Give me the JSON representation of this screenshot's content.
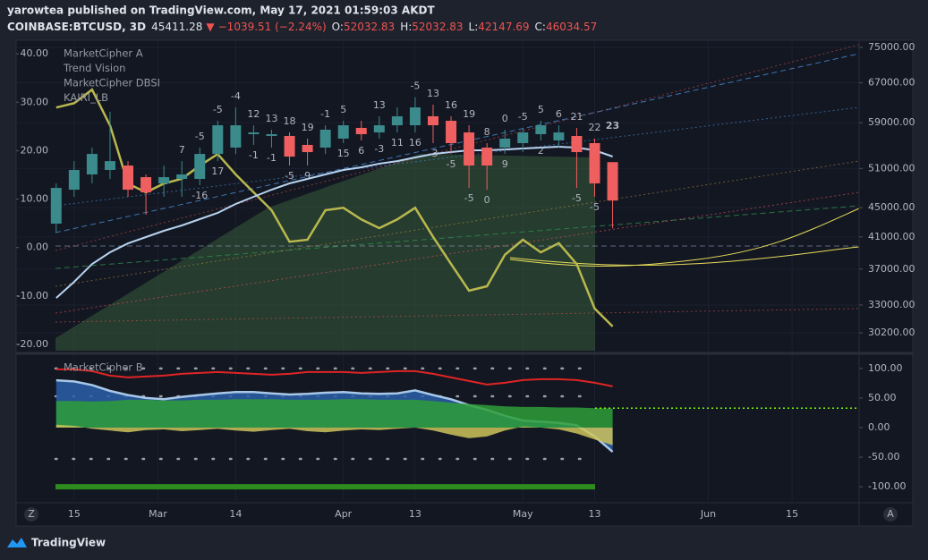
{
  "header": {
    "byline": "yarowtea published on TradingView.com, May 17, 2021 01:59:03 AKDT",
    "symbol": "COINBASE:BTCUSD, 3D",
    "price": "45411.28",
    "arrow": "▼",
    "change": "−1039.51 (−2.24%)",
    "open_label": "O:",
    "high_label": "H:",
    "low_label": "L:",
    "close_label": "C:"
  },
  "controls": {
    "left": "Z",
    "right": "A"
  },
  "brand": "TradingView",
  "chart_data": [
    {
      "type": "candlestick",
      "indicators": [
        "MarketCipher A",
        "Trend Vision",
        "MarketCipher DBSI",
        "KAIRI_LB"
      ],
      "x": [
        43,
        46,
        49,
        52,
        55,
        58,
        61,
        64,
        67,
        70,
        73,
        76,
        79,
        82,
        85,
        88,
        91,
        94,
        97,
        100,
        103,
        106,
        109,
        112,
        115,
        118,
        121,
        124,
        127,
        130,
        133,
        136
      ],
      "open": [
        42770,
        47660,
        50030,
        50750,
        51470,
        49600,
        48620,
        49320,
        49320,
        53410,
        54500,
        56880,
        56560,
        56560,
        54970,
        54500,
        56080,
        58030,
        57200,
        58520,
        58520,
        60220,
        59360,
        57200,
        54500,
        54500,
        55280,
        56880,
        55760,
        56560,
        55280,
        52032.83
      ],
      "high": [
        48620,
        52200,
        54500,
        61080,
        52200,
        50030,
        51470,
        52200,
        54500,
        59360,
        61950,
        58520,
        57700,
        57200,
        56080,
        58520,
        59360,
        59360,
        60220,
        61950,
        64000,
        62500,
        60220,
        58520,
        55280,
        57700,
        58030,
        59360,
        58520,
        58030,
        56080,
        52032.83
      ],
      "low": [
        41550,
        46590,
        48620,
        49320,
        46590,
        44000,
        46590,
        46590,
        48350,
        52200,
        53410,
        54970,
        54500,
        51470,
        51470,
        53410,
        55280,
        55760,
        56080,
        57200,
        57200,
        55280,
        53410,
        47930,
        47660,
        53410,
        53720,
        55760,
        54500,
        47930,
        46590,
        42147.69
      ],
      "close": [
        47930,
        50750,
        53410,
        52200,
        47660,
        47260,
        49600,
        50030,
        53410,
        58520,
        58520,
        57200,
        56880,
        52960,
        53720,
        57700,
        58520,
        56880,
        58520,
        60220,
        61950,
        58520,
        55280,
        51470,
        51470,
        56080,
        57200,
        58520,
        57200,
        53720,
        48620,
        46034.57
      ],
      "up_color": "#3b8a8c",
      "down_color": "#ef5f5f",
      "labels_above": [
        null,
        null,
        null,
        null,
        null,
        null,
        null,
        "7",
        "-5",
        "-5",
        "-4",
        "12",
        "13",
        "18",
        "19",
        "-1",
        "5",
        null,
        "13",
        null,
        "-5",
        "13",
        "16",
        "19",
        "8",
        "0",
        "-5",
        "5",
        "6",
        "21",
        "22",
        null
      ],
      "labels_below": [
        null,
        null,
        null,
        null,
        null,
        null,
        null,
        null,
        "-16",
        "17",
        null,
        "-1",
        "-1",
        "-5",
        "9",
        null,
        "15",
        "6",
        "-3",
        "11",
        "16",
        "-3",
        "-5",
        "-5",
        "0",
        "9",
        null,
        "2",
        null,
        "-5",
        "-5",
        null
      ],
      "signal_label": "23",
      "series": [
        {
          "color": "#b9b84e",
          "axis": "y2",
          "values": [
            28.9,
            29.8,
            32.6,
            25.2,
            13.2,
            11.4,
            13.2,
            14.2,
            16.9,
            19.3,
            15.1,
            11.4,
            7.7,
            1.2,
            1.6,
            7.7,
            8.2,
            5.8,
            4.0,
            5.8,
            8.2,
            2.2,
            -3.4,
            -8.9,
            -8.0,
            -1.5,
            1.6,
            -1.0,
            0.9,
            -3.4,
            -12.6,
            -16.3
          ]
        },
        {
          "color": "#b7d3f0",
          "values": [
            33750,
            35530,
            37610,
            39040,
            40160,
            40980,
            41810,
            42530,
            43380,
            44260,
            45540,
            46590,
            47660,
            48620,
            49320,
            50030,
            50750,
            51180,
            51770,
            52200,
            52810,
            53410,
            53720,
            54030,
            54030,
            54180,
            54340,
            54500,
            54650,
            54500,
            54030,
            52960
          ]
        }
      ],
      "xlim": [
        36.3,
        177.2
      ],
      "xticks": [
        {
          "value": 46,
          "label": "15"
        },
        {
          "value": 60,
          "label": "Mar"
        },
        {
          "value": 73,
          "label": "14"
        },
        {
          "value": 91,
          "label": "Apr"
        },
        {
          "value": 103,
          "label": "13"
        },
        {
          "value": 121,
          "label": "May"
        },
        {
          "value": 133,
          "label": "13"
        },
        {
          "value": 152,
          "label": "Jun"
        },
        {
          "value": 166,
          "label": "15"
        }
      ],
      "log": true,
      "ylim": [
        28530,
        76730
      ],
      "yticks": [
        {
          "value": 75000,
          "label": "75000.00"
        },
        {
          "value": 67000,
          "label": "67000.00"
        },
        {
          "value": 59000,
          "label": "59000.00"
        },
        {
          "value": 51000,
          "label": "51000.00"
        },
        {
          "value": 45000,
          "label": "45000.00"
        },
        {
          "value": 41000,
          "label": "41000.00"
        },
        {
          "value": 37000,
          "label": "37000.00"
        },
        {
          "value": 33000,
          "label": "33000.00"
        },
        {
          "value": 30200,
          "label": "30200.00"
        }
      ],
      "y2lim": [
        -21.3,
        42.8
      ],
      "y2ticks": [
        {
          "value": 40,
          "label": "40.00"
        },
        {
          "value": 30,
          "label": "30.00"
        },
        {
          "value": 20,
          "label": "20.00"
        },
        {
          "value": 10,
          "label": "10.00"
        },
        {
          "value": 0,
          "label": "0.00"
        },
        {
          "value": -10,
          "label": "-10.00"
        },
        {
          "value": -20,
          "label": "-20.00"
        }
      ],
      "grid": true
    },
    {
      "type": "area",
      "title": "MarketCipher B",
      "x": [
        43,
        46,
        49,
        52,
        55,
        58,
        61,
        64,
        67,
        70,
        73,
        76,
        79,
        82,
        85,
        88,
        91,
        94,
        97,
        100,
        103,
        106,
        109,
        112,
        115,
        118,
        121,
        124,
        127,
        130,
        133,
        136
      ],
      "series": [
        {
          "color": "#2a5fa8",
          "line_color": "#a9c8e8",
          "values": [
            80,
            78,
            72,
            62,
            55,
            50,
            48,
            52,
            55,
            58,
            60,
            60,
            58,
            56,
            57,
            59,
            60,
            58,
            57,
            58,
            63,
            55,
            48,
            38,
            30,
            20,
            12,
            10,
            8,
            4,
            -15,
            -41
          ]
        },
        {
          "color": "#2e9e38",
          "values": [
            45,
            45,
            44,
            45,
            47,
            47,
            46,
            46,
            47,
            47,
            48,
            48,
            48,
            47,
            47,
            47,
            48,
            48,
            47,
            47,
            47,
            45,
            42,
            40,
            38,
            36,
            35,
            35,
            34,
            34,
            33,
            32
          ]
        },
        {
          "color": "#cfc45a",
          "values": [
            5,
            3,
            -2,
            -5,
            -8,
            -4,
            -3,
            -6,
            -4,
            -2,
            -5,
            -7,
            -4,
            -2,
            -6,
            -8,
            -5,
            -3,
            -4,
            -2,
            0,
            -5,
            -12,
            -18,
            -15,
            -5,
            2,
            0,
            -3,
            -10,
            -20,
            -30
          ]
        },
        {
          "color": "#e02424",
          "line": true,
          "values": [
            98.5,
            98.5,
            95.5,
            87.9,
            84.8,
            86.4,
            87.9,
            90.9,
            92.4,
            93.9,
            92.4,
            90.9,
            89.4,
            90.9,
            93.9,
            93.9,
            93.9,
            92.4,
            93.9,
            95.5,
            95.5,
            90.9,
            84.8,
            78.8,
            72.7,
            75.8,
            80.3,
            81.8,
            81.8,
            80.3,
            75.8,
            69.7
          ]
        }
      ],
      "levels": [
        100,
        53,
        -53
      ],
      "signal_level": 33,
      "bar_level": -100,
      "ylim": [
        -124,
        121
      ],
      "yticks": [
        {
          "value": 100,
          "label": "100.00"
        },
        {
          "value": 50,
          "label": "50.00"
        },
        {
          "value": 0,
          "label": "0.00"
        },
        {
          "value": -50,
          "label": "-50.00"
        },
        {
          "value": -100,
          "label": "-100.00"
        }
      ]
    }
  ]
}
